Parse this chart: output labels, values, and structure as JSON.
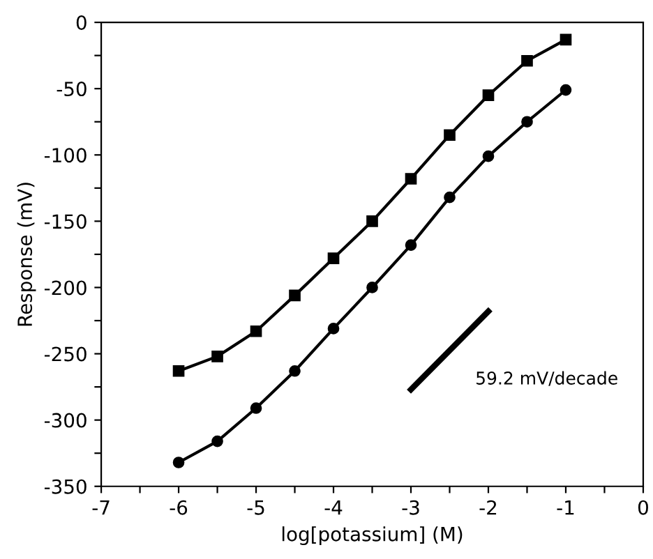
{
  "chart_data": {
    "type": "line",
    "xlabel": "log[potassium] (M)",
    "ylabel": "Response (mV)",
    "xlim": [
      -7,
      0
    ],
    "ylim": [
      -350,
      0
    ],
    "xticks": [
      -7,
      {
        "value": -6.5,
        "label": null
      },
      -6,
      {
        "value": -5.5,
        "label": null
      },
      -5,
      {
        "value": -4.5,
        "label": null
      },
      -4,
      {
        "value": -3.5,
        "label": null
      },
      -3,
      {
        "value": -2.5,
        "label": null
      },
      -2,
      {
        "value": -1.5,
        "label": null
      },
      -1,
      {
        "value": -0.5,
        "label": null
      },
      0
    ],
    "yticks": [
      -350,
      {
        "value": -325,
        "label": null
      },
      -300,
      {
        "value": -275,
        "label": null
      },
      -250,
      {
        "value": -225,
        "label": null
      },
      -200,
      {
        "value": -175,
        "label": null
      },
      -150,
      {
        "value": -125,
        "label": null
      },
      -100,
      {
        "value": -75,
        "label": null
      },
      -50,
      {
        "value": -25,
        "label": null
      },
      0
    ],
    "x": [
      -6,
      -5.5,
      -5,
      -4.5,
      -4,
      -3.5,
      -3,
      -2.5,
      -2,
      -1.5,
      -1
    ],
    "series": [
      {
        "color": "#000000",
        "marker": "square",
        "values": [
          -263,
          -252,
          -233,
          -206,
          -178,
          -150,
          -118,
          -85,
          -55,
          -29,
          -13
        ]
      },
      {
        "color": "#000000",
        "marker": "circle",
        "values": [
          -332,
          -316,
          -291,
          -263,
          -231,
          -200,
          -168,
          -132,
          -101,
          -75,
          -51
        ]
      },
      {
        "color": "#000000",
        "marker": "none",
        "x": [
          -3,
          -2
        ],
        "values": [
          -277,
          -218
        ]
      }
    ],
    "annotations": [
      "59.2 mV/decade"
    ],
    "grid": false,
    "legend": false
  }
}
